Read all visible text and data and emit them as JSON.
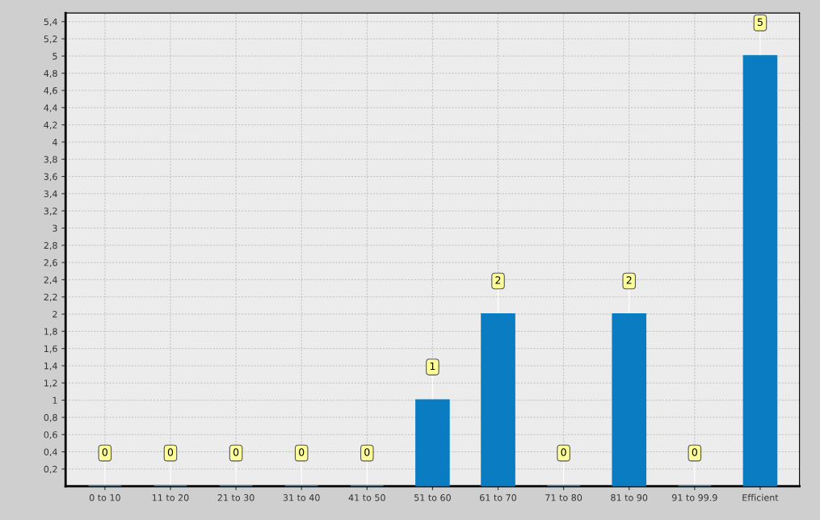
{
  "chart_data": {
    "type": "bar",
    "categories": [
      "0 to 10",
      "11 to 20",
      "21 to 30",
      "31 to 40",
      "41 to 50",
      "51 to 60",
      "61 to 70",
      "71 to 80",
      "81 to 90",
      "91 to 99.9",
      "Efficient"
    ],
    "values": [
      0,
      0,
      0,
      0,
      0,
      1,
      2,
      0,
      2,
      0,
      5
    ],
    "color": "#0a7dc2",
    "ylim": [
      0,
      5.5
    ],
    "yticks": [
      {
        "value": 0.2,
        "label": "0,2"
      },
      {
        "value": 0.4,
        "label": "0,4"
      },
      {
        "value": 0.6,
        "label": "0,6"
      },
      {
        "value": 0.8,
        "label": "0,8"
      },
      1,
      {
        "value": 1.2,
        "label": "1,2"
      },
      {
        "value": 1.4,
        "label": "1,4"
      },
      {
        "value": 1.6,
        "label": "1,6"
      },
      {
        "value": 1.8,
        "label": "1,8"
      },
      2,
      {
        "value": 2.2,
        "label": "2,2"
      },
      {
        "value": 2.4,
        "label": "2,4"
      },
      {
        "value": 2.6,
        "label": "2,6"
      },
      {
        "value": 2.8,
        "label": "2,8"
      },
      3,
      {
        "value": 3.2,
        "label": "3,2"
      },
      {
        "value": 3.4,
        "label": "3,4"
      },
      {
        "value": 3.6,
        "label": "3,6"
      },
      {
        "value": 3.8,
        "label": "3,8"
      },
      4,
      {
        "value": 4.2,
        "label": "4,2"
      },
      {
        "value": 4.4,
        "label": "4,4"
      },
      {
        "value": 4.6,
        "label": "4,6"
      },
      {
        "value": 4.8,
        "label": "4,8"
      },
      5,
      {
        "value": 5.2,
        "label": "5,2"
      },
      {
        "value": 5.4,
        "label": "5,4"
      }
    ],
    "grid": true,
    "data_labels": true
  }
}
